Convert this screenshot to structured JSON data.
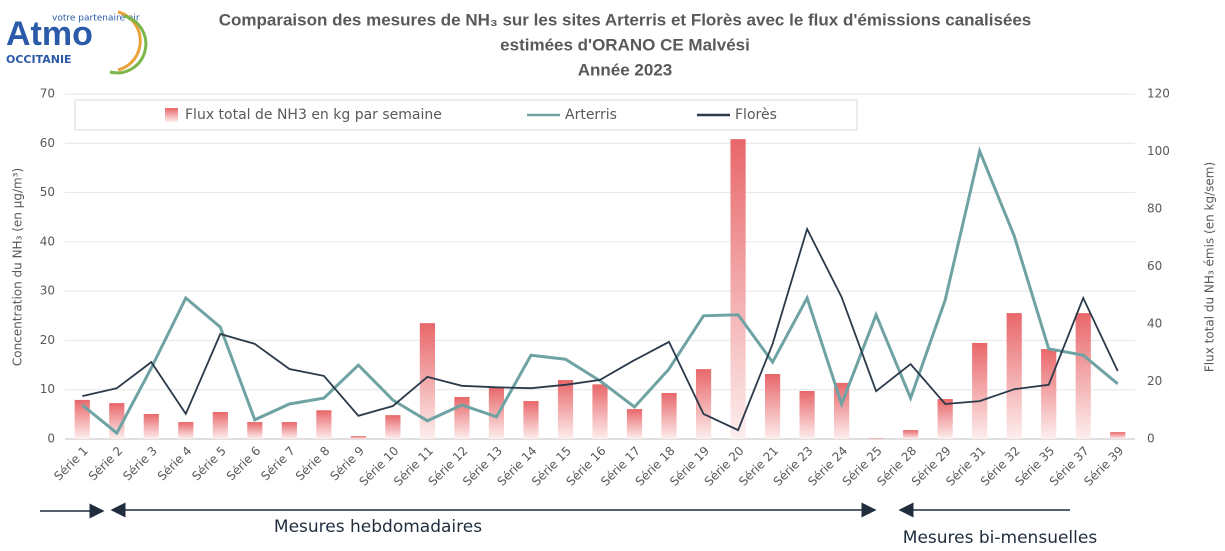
{
  "logo": {
    "name": "Atmo",
    "region": "OCCITANIE",
    "tagline": "votre partenaire air"
  },
  "chart_data": {
    "type": "bar-line",
    "title": [
      "Comparaison des mesures de NH₃ sur les sites  Arterris et Florès avec le flux d'émissions canalisées",
      "estimées  d'ORANO CE Malvési",
      "Année 2023"
    ],
    "ylabel": "Concentration du NH₃ (en µg/m³)",
    "y2label": "Flux total du NH₃ émis (en kg/sem)",
    "categories": [
      "Série 1",
      "Série 2",
      "Série 3",
      "Série 4",
      "Série 5",
      "Série 6",
      "Série 7",
      "Série 8",
      "Série 9",
      "Série 10",
      "Série 11",
      "Série 12",
      "Série 13",
      "Série 14",
      "Série 15",
      "Série 16",
      "Série 17",
      "Série 18",
      "Série 19",
      "Série 20",
      "Série 21",
      "Série 23",
      "Série 24",
      "Série 25",
      "Série 28",
      "Série 29",
      "Série 31",
      "Série 32",
      "Série 35",
      "Série 37",
      "Série 39"
    ],
    "series": [
      {
        "name": "Flux total de NH3 en kg par semaine",
        "type": "bar",
        "axis": "y2",
        "color": "#e8676a",
        "values": [
          13.6,
          12.5,
          8.7,
          5.9,
          9.4,
          5.9,
          5.9,
          10,
          1,
          8.3,
          40.3,
          14.6,
          18,
          13.2,
          20.5,
          19,
          10.4,
          16,
          24.3,
          104.3,
          22.6,
          16.7,
          19.5,
          0.3,
          3.1,
          13.9,
          33.4,
          43.8,
          31.3,
          43.8,
          2.4
        ]
      },
      {
        "name": "Arterris",
        "type": "line",
        "color": "#6fa3a3",
        "values": [
          6.9,
          1.2,
          14.4,
          28.6,
          22.7,
          3.9,
          7.1,
          8.3,
          15,
          7.9,
          3.7,
          6.9,
          4.5,
          17,
          16.2,
          11.8,
          6.5,
          14.2,
          25,
          25.2,
          15.6,
          28.6,
          7.1,
          25.2,
          8.3,
          28.2,
          58.4,
          41.2,
          18.3,
          17,
          11.2
        ]
      },
      {
        "name": "Florès",
        "type": "line",
        "color": "#2b3a4a",
        "values": [
          8.7,
          10.3,
          15.6,
          5.1,
          21.3,
          19.3,
          14.2,
          12.8,
          4.7,
          6.7,
          12.6,
          10.8,
          10.5,
          10.3,
          11,
          12,
          16,
          19.7,
          5.1,
          1.8,
          19.3,
          42.6,
          28.8,
          9.7,
          15.2,
          7.1,
          7.7,
          10.1,
          11,
          28.6,
          13.8
        ]
      }
    ],
    "ylim": [
      0,
      70
    ],
    "yticks": [
      0,
      10,
      20,
      30,
      40,
      50,
      60,
      70
    ],
    "y2lim": [
      0,
      120
    ],
    "y2ticks": [
      0,
      20,
      40,
      60,
      80,
      100,
      120
    ],
    "grid": true,
    "annotations": [
      "Mesures hebdomadaires",
      "Mesures bi-mensuelles"
    ]
  }
}
